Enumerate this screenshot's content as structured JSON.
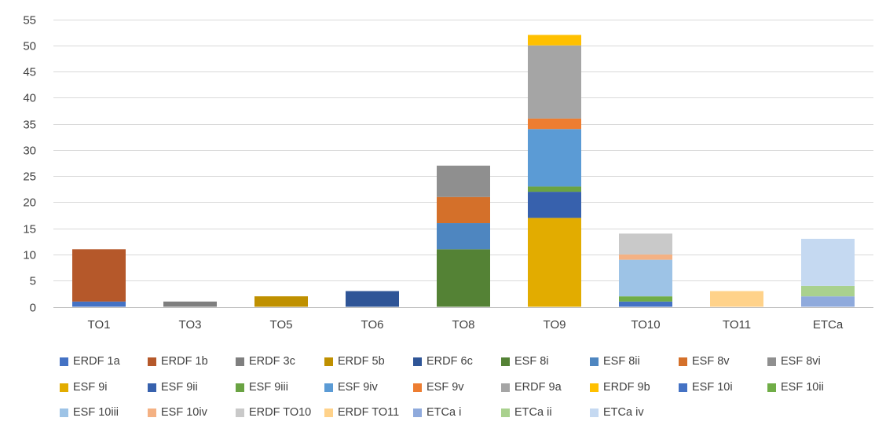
{
  "chart_data": {
    "type": "bar",
    "stacked": true,
    "categories": [
      "TO1",
      "TO3",
      "TO5",
      "TO6",
      "TO8",
      "TO9",
      "TO10",
      "TO11",
      "ETCa"
    ],
    "ylim": [
      0,
      55
    ],
    "yticks": [
      0,
      5,
      10,
      15,
      20,
      25,
      30,
      35,
      40,
      45,
      50,
      55
    ],
    "grid": true,
    "legend_position": "bottom",
    "series": [
      {
        "name": "ERDF 1a",
        "color": "#4472c4",
        "values": [
          1,
          0,
          0,
          0,
          0,
          0,
          0,
          0,
          0
        ]
      },
      {
        "name": "ERDF 1b",
        "color": "#b5582a",
        "values": [
          10,
          0,
          0,
          0,
          0,
          0,
          0,
          0,
          0
        ]
      },
      {
        "name": "ERDF 3c",
        "color": "#7f7f7f",
        "values": [
          0,
          1,
          0,
          0,
          0,
          0,
          0,
          0,
          0
        ]
      },
      {
        "name": "ERDF 5b",
        "color": "#bf9000",
        "values": [
          0,
          0,
          2,
          0,
          0,
          0,
          0,
          0,
          0
        ]
      },
      {
        "name": "ERDF 6c",
        "color": "#2f5597",
        "values": [
          0,
          0,
          0,
          3,
          0,
          0,
          0,
          0,
          0
        ]
      },
      {
        "name": "ESF 8i",
        "color": "#548235",
        "values": [
          0,
          0,
          0,
          0,
          11,
          0,
          0,
          0,
          0
        ]
      },
      {
        "name": "ESF 8ii",
        "color": "#4e86c0",
        "values": [
          0,
          0,
          0,
          0,
          5,
          0,
          0,
          0,
          0
        ]
      },
      {
        "name": "ESF 8v",
        "color": "#d4702a",
        "values": [
          0,
          0,
          0,
          0,
          5,
          0,
          0,
          0,
          0
        ]
      },
      {
        "name": "ESF 8vi",
        "color": "#8f8f8f",
        "values": [
          0,
          0,
          0,
          0,
          6,
          0,
          0,
          0,
          0
        ]
      },
      {
        "name": "ESF 9i",
        "color": "#e2ac00",
        "values": [
          0,
          0,
          0,
          0,
          0,
          17,
          0,
          0,
          0
        ]
      },
      {
        "name": "ESF 9ii",
        "color": "#3761ad",
        "values": [
          0,
          0,
          0,
          0,
          0,
          5,
          0,
          0,
          0
        ]
      },
      {
        "name": "ESF 9iii",
        "color": "#6aa343",
        "values": [
          0,
          0,
          0,
          0,
          0,
          1,
          0,
          0,
          0
        ]
      },
      {
        "name": "ESF 9iv",
        "color": "#5b9bd5",
        "values": [
          0,
          0,
          0,
          0,
          0,
          11,
          0,
          0,
          0
        ]
      },
      {
        "name": "ESF 9v",
        "color": "#ed7d31",
        "values": [
          0,
          0,
          0,
          0,
          0,
          2,
          0,
          0,
          0
        ]
      },
      {
        "name": "ERDF 9a",
        "color": "#a5a5a5",
        "values": [
          0,
          0,
          0,
          0,
          0,
          14,
          0,
          0,
          0
        ]
      },
      {
        "name": "ERDF 9b",
        "color": "#ffc000",
        "values": [
          0,
          0,
          0,
          0,
          0,
          2,
          0,
          0,
          0
        ]
      },
      {
        "name": "ESF 10i",
        "color": "#4472c4",
        "values": [
          0,
          0,
          0,
          0,
          0,
          0,
          1,
          0,
          0
        ]
      },
      {
        "name": "ESF 10ii",
        "color": "#70ad47",
        "values": [
          0,
          0,
          0,
          0,
          0,
          0,
          1,
          0,
          0
        ]
      },
      {
        "name": "ESF 10iii",
        "color": "#9dc3e6",
        "values": [
          0,
          0,
          0,
          0,
          0,
          0,
          7,
          0,
          0
        ]
      },
      {
        "name": "ESF 10iv",
        "color": "#f4b183",
        "values": [
          0,
          0,
          0,
          0,
          0,
          0,
          1,
          0,
          0
        ]
      },
      {
        "name": "ERDF TO10",
        "color": "#c9c9c9",
        "values": [
          0,
          0,
          0,
          0,
          0,
          0,
          4,
          0,
          0
        ]
      },
      {
        "name": "ERDF TO11",
        "color": "#ffd28a",
        "values": [
          0,
          0,
          0,
          0,
          0,
          0,
          0,
          3,
          0
        ]
      },
      {
        "name": "ETCa i",
        "color": "#8faadc",
        "values": [
          0,
          0,
          0,
          0,
          0,
          0,
          0,
          0,
          2
        ]
      },
      {
        "name": "ETCa ii",
        "color": "#a9d18e",
        "values": [
          0,
          0,
          0,
          0,
          0,
          0,
          0,
          0,
          2
        ]
      },
      {
        "name": "ETCa iv",
        "color": "#c5d9f1",
        "values": [
          0,
          0,
          0,
          0,
          0,
          0,
          0,
          0,
          9
        ]
      }
    ]
  }
}
